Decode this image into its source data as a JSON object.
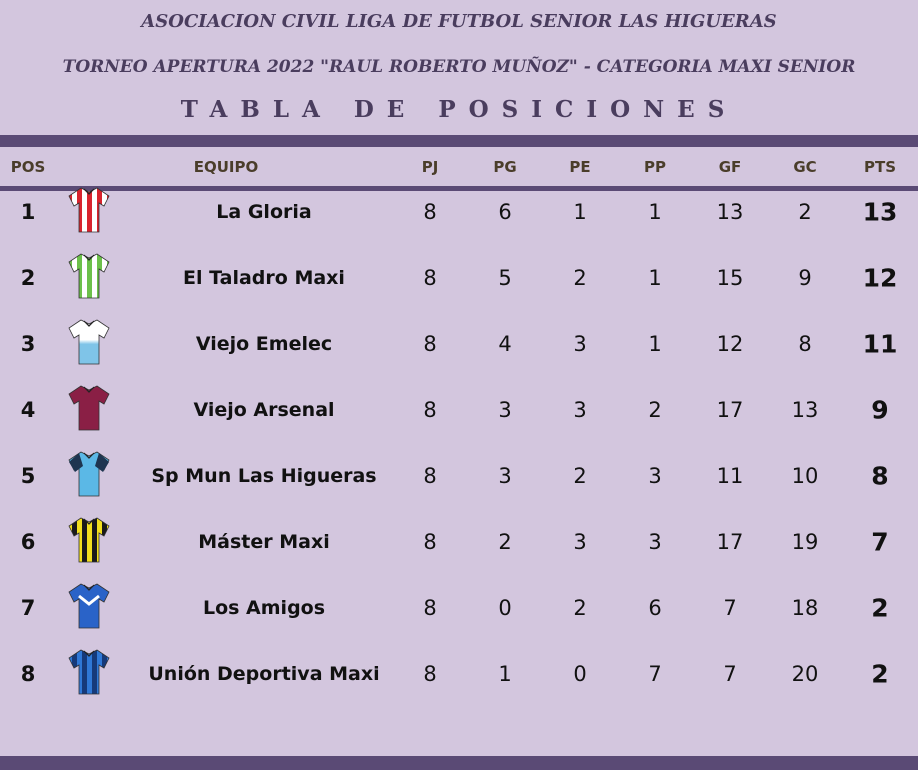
{
  "header": {
    "line1": "ASOCIACION CIVIL LIGA DE FUTBOL SENIOR LAS HIGUERAS",
    "line2": "TORNEO APERTURA 2022 \"RAUL ROBERTO MUÑOZ\" - CATEGORIA MAXI SENIOR",
    "line3": "TABLA DE POSICIONES"
  },
  "columns": {
    "pos": "POS",
    "team": "EQUIPO",
    "pj": "PJ",
    "pg": "PG",
    "pe": "PE",
    "pp": "PP",
    "gf": "GF",
    "gc": "GC",
    "pts": "PTS"
  },
  "rows": [
    {
      "pos": "1",
      "team": "La Gloria",
      "pj": "8",
      "pg": "6",
      "pe": "1",
      "pp": "1",
      "gf": "13",
      "gc": "2",
      "pts": "13",
      "shirt": "striped-red-white-shirt-icon",
      "colors": [
        "#d8232e",
        "#ffffff"
      ],
      "style": "vstripe"
    },
    {
      "pos": "2",
      "team": "El Taladro Maxi",
      "pj": "8",
      "pg": "5",
      "pe": "2",
      "pp": "1",
      "gf": "15",
      "gc": "9",
      "pts": "12",
      "shirt": "striped-green-white-shirt-icon",
      "colors": [
        "#6cc04a",
        "#ffffff"
      ],
      "style": "vstripe"
    },
    {
      "pos": "3",
      "team": "Viejo Emelec",
      "pj": "8",
      "pg": "4",
      "pe": "3",
      "pp": "1",
      "gf": "12",
      "gc": "8",
      "pts": "11",
      "shirt": "white-skyblue-shirt-icon",
      "colors": [
        "#ffffff",
        "#7fc4e8"
      ],
      "style": "split"
    },
    {
      "pos": "4",
      "team": "Viejo Arsenal",
      "pj": "8",
      "pg": "3",
      "pe": "3",
      "pp": "2",
      "gf": "17",
      "gc": "13",
      "pts": "9",
      "shirt": "maroon-shirt-icon",
      "colors": [
        "#8a1f45",
        "#8a1f45"
      ],
      "style": "solid"
    },
    {
      "pos": "5",
      "team": "Sp Mun Las Higueras",
      "pj": "8",
      "pg": "3",
      "pe": "2",
      "pp": "3",
      "gf": "11",
      "gc": "10",
      "pts": "8",
      "shirt": "skyblue-navy-shirt-icon",
      "colors": [
        "#5bb8e6",
        "#1e3550"
      ],
      "style": "sleeves"
    },
    {
      "pos": "6",
      "team": "Máster Maxi",
      "pj": "8",
      "pg": "2",
      "pe": "3",
      "pp": "3",
      "gf": "17",
      "gc": "19",
      "pts": "7",
      "shirt": "striped-yellow-black-shirt-icon",
      "colors": [
        "#f2df1e",
        "#1a1a1a"
      ],
      "style": "vstripe"
    },
    {
      "pos": "7",
      "team": "Los Amigos",
      "pj": "8",
      "pg": "0",
      "pe": "2",
      "pp": "6",
      "gf": "7",
      "gc": "18",
      "pts": "2",
      "shirt": "blue-white-shirt-icon",
      "colors": [
        "#2a63c8",
        "#ffffff"
      ],
      "style": "chevron"
    },
    {
      "pos": "8",
      "team": "Unión Deportiva Maxi",
      "pj": "8",
      "pg": "1",
      "pe": "0",
      "pp": "7",
      "gf": "7",
      "gc": "20",
      "pts": "2",
      "shirt": "striped-blue-navy-shirt-icon",
      "colors": [
        "#2f78d6",
        "#163a7a"
      ],
      "style": "vstripe"
    }
  ]
}
